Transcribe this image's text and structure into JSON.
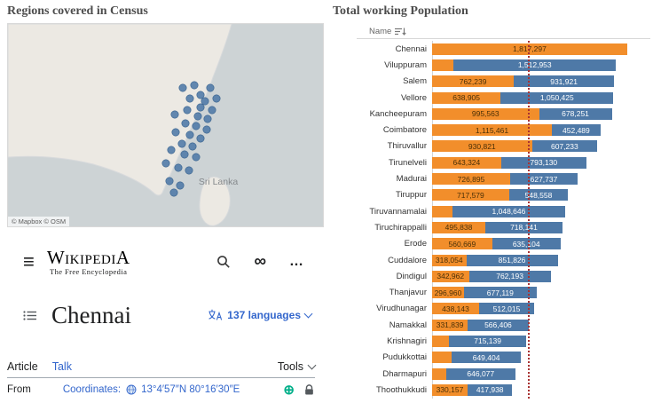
{
  "map_panel": {
    "title": "Regions covered in Census",
    "sri_lanka_label": "Sri Lanka",
    "attribution": "© Mapbox © OSM",
    "colors": {
      "water": "#cdd3d5",
      "land": "#ece9e3",
      "coast": "#d8dadc",
      "dot": "#4e79a7"
    },
    "dots": [
      [
        197,
        72
      ],
      [
        210,
        69
      ],
      [
        228,
        72
      ],
      [
        217,
        80
      ],
      [
        205,
        84
      ],
      [
        222,
        87
      ],
      [
        235,
        84
      ],
      [
        217,
        94
      ],
      [
        202,
        97
      ],
      [
        230,
        97
      ],
      [
        188,
        102
      ],
      [
        214,
        104
      ],
      [
        225,
        107
      ],
      [
        200,
        112
      ],
      [
        212,
        115
      ],
      [
        224,
        119
      ],
      [
        189,
        122
      ],
      [
        205,
        125
      ],
      [
        217,
        129
      ],
      [
        196,
        135
      ],
      [
        208,
        138
      ],
      [
        184,
        142
      ],
      [
        199,
        147
      ],
      [
        212,
        150
      ],
      [
        178,
        157
      ],
      [
        192,
        162
      ],
      [
        204,
        165
      ],
      [
        182,
        177
      ],
      [
        194,
        182
      ],
      [
        187,
        190
      ]
    ]
  },
  "wiki": {
    "menu_icon": "≡",
    "logo_text": "WikipediA",
    "logo_subtitle": "The Free Encyclopedia",
    "infinity_icon": "∞",
    "ellipsis_icon": "…",
    "title": "Chennai",
    "languages_label": "137 languages",
    "tab_article": "Article",
    "tab_talk": "Talk",
    "tools_label": "Tools",
    "from_label": "From",
    "coordinates_label": "Coordinates:",
    "coordinates_value": "13°4′57″N 80°16′30″E",
    "circled_plus_icon": "⊕",
    "link_color": "#3366cc"
  },
  "chart_panel": {
    "title": "Total working Population",
    "header": "Name"
  },
  "chart_data": {
    "type": "bar",
    "orientation": "horizontal",
    "stacked": true,
    "title": "Total working Population",
    "x_axis": {
      "min": 0,
      "max": 2000000,
      "visible": false
    },
    "colors": {
      "orange": "#f28e2b",
      "blue": "#4e79a7"
    },
    "reference_line": {
      "value": 890000,
      "color": "#a83232",
      "style": "dotted"
    },
    "rows": [
      {
        "name": "Chennai",
        "segments": [
          {
            "color": "#f28e2b",
            "value": 1817297,
            "label": "1,817,297"
          }
        ]
      },
      {
        "name": "Viluppuram",
        "segments": [
          {
            "color": "#f28e2b",
            "value": 200000,
            "label": ""
          },
          {
            "color": "#4e79a7",
            "value": 1512953,
            "label": "1,512,953"
          }
        ]
      },
      {
        "name": "Salem",
        "segments": [
          {
            "color": "#f28e2b",
            "value": 762239,
            "label": "762,239"
          },
          {
            "color": "#4e79a7",
            "value": 931921,
            "label": "931,921"
          }
        ]
      },
      {
        "name": "Vellore",
        "segments": [
          {
            "color": "#f28e2b",
            "value": 638905,
            "label": "638,905"
          },
          {
            "color": "#4e79a7",
            "value": 1050425,
            "label": "1,050,425"
          }
        ]
      },
      {
        "name": "Kancheepuram",
        "segments": [
          {
            "color": "#f28e2b",
            "value": 995563,
            "label": "995,563"
          },
          {
            "color": "#4e79a7",
            "value": 678251,
            "label": "678,251"
          }
        ]
      },
      {
        "name": "Coimbatore",
        "segments": [
          {
            "color": "#f28e2b",
            "value": 1115461,
            "label": "1,115,461"
          },
          {
            "color": "#4e79a7",
            "value": 452489,
            "label": "452,489"
          }
        ]
      },
      {
        "name": "Thiruvallur",
        "segments": [
          {
            "color": "#f28e2b",
            "value": 930821,
            "label": "930,821"
          },
          {
            "color": "#4e79a7",
            "value": 607233,
            "label": "607,233"
          }
        ]
      },
      {
        "name": "Tirunelveli",
        "segments": [
          {
            "color": "#f28e2b",
            "value": 643324,
            "label": "643,324"
          },
          {
            "color": "#4e79a7",
            "value": 793130,
            "label": "793,130"
          }
        ]
      },
      {
        "name": "Madurai",
        "segments": [
          {
            "color": "#f28e2b",
            "value": 726895,
            "label": "726,895"
          },
          {
            "color": "#4e79a7",
            "value": 627737,
            "label": "627,737"
          }
        ]
      },
      {
        "name": "Tiruppur",
        "segments": [
          {
            "color": "#f28e2b",
            "value": 717579,
            "label": "717,579"
          },
          {
            "color": "#4e79a7",
            "value": 548558,
            "label": "548,558"
          }
        ]
      },
      {
        "name": "Tiruvannamalai",
        "segments": [
          {
            "color": "#f28e2b",
            "value": 190000,
            "label": ""
          },
          {
            "color": "#4e79a7",
            "value": 1048646,
            "label": "1,048,646"
          }
        ]
      },
      {
        "name": "Tiruchirappalli",
        "segments": [
          {
            "color": "#f28e2b",
            "value": 495838,
            "label": "495,838"
          },
          {
            "color": "#4e79a7",
            "value": 718141,
            "label": "718,141"
          }
        ]
      },
      {
        "name": "Erode",
        "segments": [
          {
            "color": "#f28e2b",
            "value": 560669,
            "label": "560,669"
          },
          {
            "color": "#4e79a7",
            "value": 635104,
            "label": "635,104"
          }
        ]
      },
      {
        "name": "Cuddalore",
        "segments": [
          {
            "color": "#f28e2b",
            "value": 318054,
            "label": "318,054"
          },
          {
            "color": "#4e79a7",
            "value": 851826,
            "label": "851,826"
          }
        ]
      },
      {
        "name": "Dindigul",
        "segments": [
          {
            "color": "#f28e2b",
            "value": 342962,
            "label": "342,962"
          },
          {
            "color": "#4e79a7",
            "value": 762193,
            "label": "762,193"
          }
        ]
      },
      {
        "name": "Thanjavur",
        "segments": [
          {
            "color": "#f28e2b",
            "value": 296960,
            "label": "296,960"
          },
          {
            "color": "#4e79a7",
            "value": 677119,
            "label": "677,119"
          }
        ]
      },
      {
        "name": "Virudhunagar",
        "segments": [
          {
            "color": "#f28e2b",
            "value": 438143,
            "label": "438,143"
          },
          {
            "color": "#4e79a7",
            "value": 512015,
            "label": "512,015"
          }
        ]
      },
      {
        "name": "Namakkal",
        "segments": [
          {
            "color": "#f28e2b",
            "value": 331839,
            "label": "331,839"
          },
          {
            "color": "#4e79a7",
            "value": 566406,
            "label": "566,406"
          }
        ]
      },
      {
        "name": "Krishnagiri",
        "segments": [
          {
            "color": "#f28e2b",
            "value": 160000,
            "label": ""
          },
          {
            "color": "#4e79a7",
            "value": 715139,
            "label": "715,139"
          }
        ]
      },
      {
        "name": "Pudukkottai",
        "segments": [
          {
            "color": "#f28e2b",
            "value": 180000,
            "label": ""
          },
          {
            "color": "#4e79a7",
            "value": 649404,
            "label": "649,404"
          }
        ]
      },
      {
        "name": "Dharmapuri",
        "segments": [
          {
            "color": "#f28e2b",
            "value": 130000,
            "label": ""
          },
          {
            "color": "#4e79a7",
            "value": 646077,
            "label": "646,077"
          }
        ]
      },
      {
        "name": "Thoothukkudi",
        "segments": [
          {
            "color": "#f28e2b",
            "value": 330157,
            "label": "330,157"
          },
          {
            "color": "#4e79a7",
            "value": 417938,
            "label": "417,938"
          }
        ]
      }
    ]
  }
}
